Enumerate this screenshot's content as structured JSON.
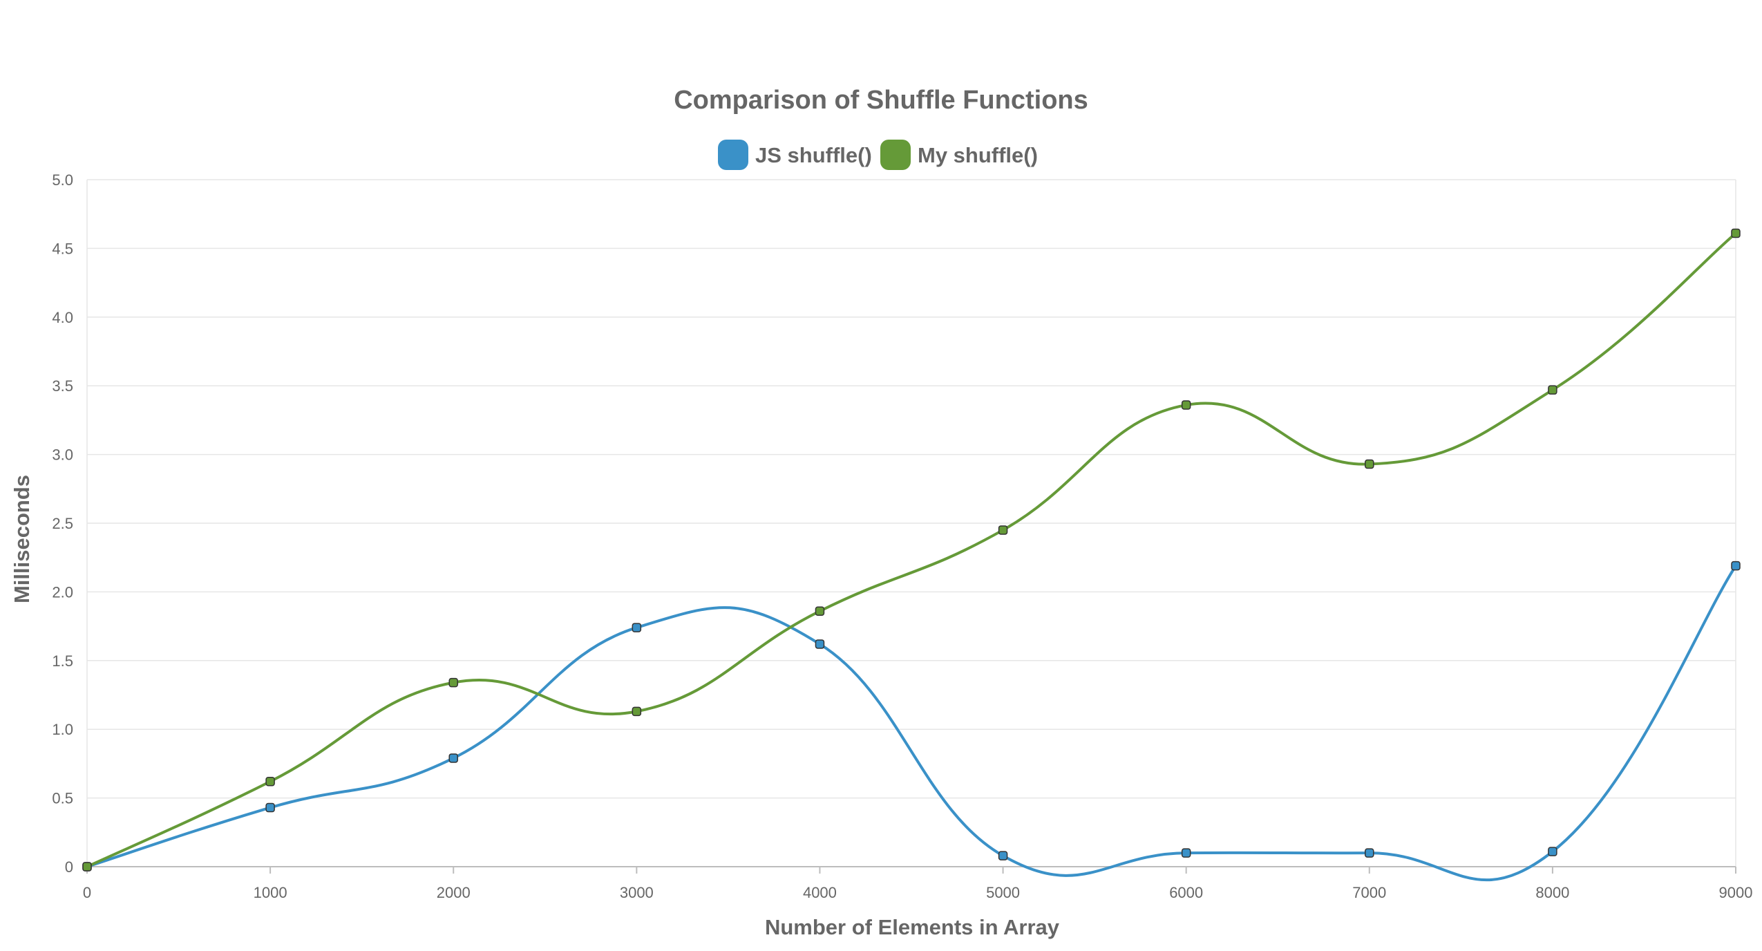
{
  "chart_data": {
    "type": "line",
    "title": "Comparison of Shuffle Functions",
    "xlabel": "Number of Elements in Array",
    "ylabel": "Milliseconds",
    "x": [
      0,
      1000,
      2000,
      3000,
      4000,
      5000,
      6000,
      7000,
      8000,
      9000
    ],
    "x_tick_labels": [
      "0",
      "1000",
      "2000",
      "3000",
      "4000",
      "5000",
      "6000",
      "7000",
      "8000",
      "9000"
    ],
    "y_tick_labels": [
      "0",
      "0.5",
      "1.0",
      "1.5",
      "2.0",
      "2.5",
      "3.0",
      "3.5",
      "4.0",
      "4.5",
      "5.0"
    ],
    "xlim": [
      0,
      9000
    ],
    "ylim": [
      0,
      5.0
    ],
    "grid": true,
    "legend_position": "top",
    "series": [
      {
        "name": "JS shuffle()",
        "color": "#3a91c8",
        "values": [
          0,
          0.43,
          0.79,
          1.74,
          1.62,
          0.08,
          0.1,
          0.1,
          0.11,
          2.19
        ]
      },
      {
        "name": "My shuffle()",
        "color": "#659a38",
        "values": [
          0,
          0.62,
          1.34,
          1.13,
          1.86,
          2.45,
          3.36,
          2.93,
          3.47,
          4.61
        ]
      }
    ]
  }
}
